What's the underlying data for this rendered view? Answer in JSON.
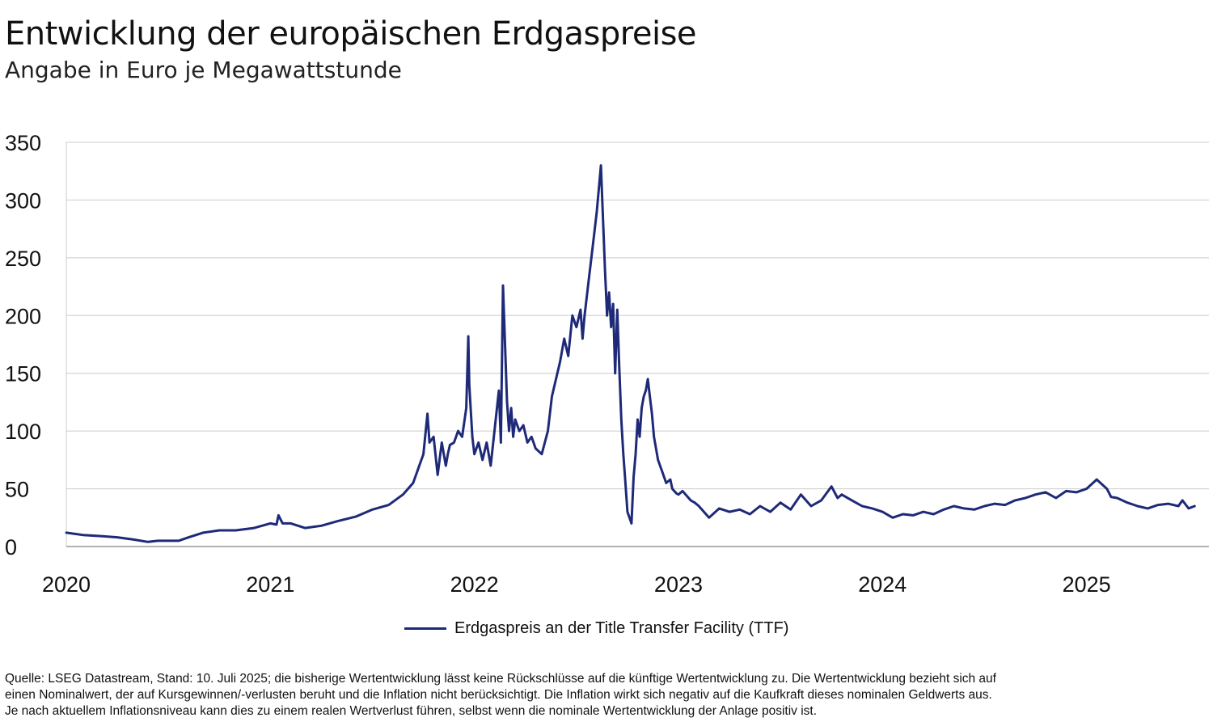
{
  "title": "Entwicklung der europäischen Erdgaspreise",
  "subtitle": "Angabe in Euro je Megawattstunde",
  "legend": {
    "label": "Erdgaspreis an der Title Transfer Facility (TTF)"
  },
  "footnote": {
    "line1": "Quelle: LSEG Datastream, Stand: 10. Juli 2025; die bisherige Wertentwicklung lässt keine Rückschlüsse auf die künftige Wertentwicklung zu. Die Wertentwicklung bezieht sich auf",
    "line2": "einen Nominalwert, der auf Kursgewinnen/-verlusten beruht und die Inflation nicht berücksichtigt. Die Inflation wirkt sich negativ auf die Kaufkraft dieses nominalen Geldwerts aus.",
    "line3": "Je nach aktuellem Inflationsniveau kann dies zu einem realen Wertverlust führen, selbst wenn die nominale Wertentwicklung der Anlage positiv ist."
  },
  "colors": {
    "line": "#1e2a78",
    "grid": "#cccccc",
    "axis": "#999999"
  },
  "chart_data": {
    "type": "line",
    "title": "Entwicklung der europäischen Erdgaspreise",
    "subtitle": "Angabe in Euro je Megawattstunde",
    "xlabel": "",
    "ylabel": "",
    "xlim": [
      2020.0,
      2025.6
    ],
    "ylim": [
      0,
      350
    ],
    "yticks": [
      0,
      50,
      100,
      150,
      200,
      250,
      300,
      350
    ],
    "xticks": [
      "2020",
      "2021",
      "2022",
      "2023",
      "2024",
      "2025"
    ],
    "grid": true,
    "legend_position": "bottom",
    "series": [
      {
        "name": "Erdgaspreis an der Title Transfer Facility (TTF)",
        "x": [
          2020.0,
          2020.08,
          2020.17,
          2020.25,
          2020.33,
          2020.4,
          2020.45,
          2020.55,
          2020.6,
          2020.67,
          2020.75,
          2020.83,
          2020.92,
          2021.0,
          2021.03,
          2021.04,
          2021.06,
          2021.1,
          2021.17,
          2021.25,
          2021.33,
          2021.42,
          2021.5,
          2021.58,
          2021.65,
          2021.7,
          2021.73,
          2021.75,
          2021.77,
          2021.78,
          2021.8,
          2021.82,
          2021.84,
          2021.86,
          2021.87,
          2021.88,
          2021.9,
          2021.92,
          2021.94,
          2021.96,
          2021.97,
          2021.975,
          2021.99,
          2022.0,
          2022.02,
          2022.04,
          2022.06,
          2022.08,
          2022.12,
          2022.13,
          2022.14,
          2022.16,
          2022.17,
          2022.18,
          2022.19,
          2022.2,
          2022.22,
          2022.24,
          2022.26,
          2022.28,
          2022.3,
          2022.33,
          2022.36,
          2022.38,
          2022.42,
          2022.44,
          2022.46,
          2022.48,
          2022.5,
          2022.52,
          2022.53,
          2022.54,
          2022.56,
          2022.58,
          2022.6,
          2022.62,
          2022.64,
          2022.65,
          2022.66,
          2022.67,
          2022.68,
          2022.69,
          2022.7,
          2022.71,
          2022.72,
          2022.73,
          2022.74,
          2022.75,
          2022.77,
          2022.78,
          2022.79,
          2022.8,
          2022.81,
          2022.82,
          2022.83,
          2022.84,
          2022.85,
          2022.86,
          2022.87,
          2022.88,
          2022.9,
          2022.92,
          2022.94,
          2022.96,
          2022.97,
          2022.99,
          2023.0,
          2023.02,
          2023.04,
          2023.06,
          2023.08,
          2023.1,
          2023.15,
          2023.2,
          2023.25,
          2023.3,
          2023.35,
          2023.4,
          2023.45,
          2023.5,
          2023.55,
          2023.6,
          2023.65,
          2023.7,
          2023.75,
          2023.78,
          2023.8,
          2023.85,
          2023.9,
          2023.95,
          2024.0,
          2024.05,
          2024.1,
          2024.15,
          2024.2,
          2024.25,
          2024.3,
          2024.35,
          2024.4,
          2024.45,
          2024.5,
          2024.55,
          2024.6,
          2024.65,
          2024.7,
          2024.75,
          2024.8,
          2024.85,
          2024.9,
          2024.95,
          2025.0,
          2025.05,
          2025.1,
          2025.12,
          2025.15,
          2025.2,
          2025.25,
          2025.3,
          2025.35,
          2025.4,
          2025.45,
          2025.47,
          2025.5,
          2025.53
        ],
        "values": [
          12,
          10,
          9,
          8,
          6,
          4,
          5,
          5,
          8,
          12,
          14,
          14,
          16,
          20,
          19,
          27,
          20,
          20,
          16,
          18,
          22,
          26,
          32,
          36,
          45,
          55,
          70,
          80,
          115,
          90,
          95,
          62,
          90,
          70,
          80,
          88,
          90,
          100,
          95,
          120,
          182,
          140,
          95,
          80,
          90,
          75,
          90,
          70,
          135,
          90,
          226,
          125,
          100,
          120,
          95,
          110,
          100,
          105,
          90,
          95,
          85,
          80,
          100,
          130,
          160,
          180,
          165,
          200,
          190,
          205,
          180,
          200,
          230,
          260,
          290,
          330,
          240,
          200,
          220,
          190,
          210,
          150,
          205,
          155,
          110,
          80,
          55,
          30,
          20,
          60,
          80,
          110,
          95,
          120,
          130,
          135,
          145,
          130,
          115,
          95,
          75,
          65,
          55,
          58,
          50,
          46,
          45,
          48,
          44,
          40,
          38,
          35,
          25,
          33,
          30,
          32,
          28,
          35,
          30,
          38,
          32,
          45,
          35,
          40,
          52,
          42,
          45,
          40,
          35,
          33,
          30,
          25,
          28,
          27,
          30,
          28,
          32,
          35,
          33,
          32,
          35,
          37,
          36,
          40,
          42,
          45,
          47,
          42,
          48,
          47,
          50,
          58,
          50,
          43,
          42,
          38,
          35,
          33,
          36,
          37,
          35,
          40,
          33,
          35
        ]
      }
    ]
  }
}
